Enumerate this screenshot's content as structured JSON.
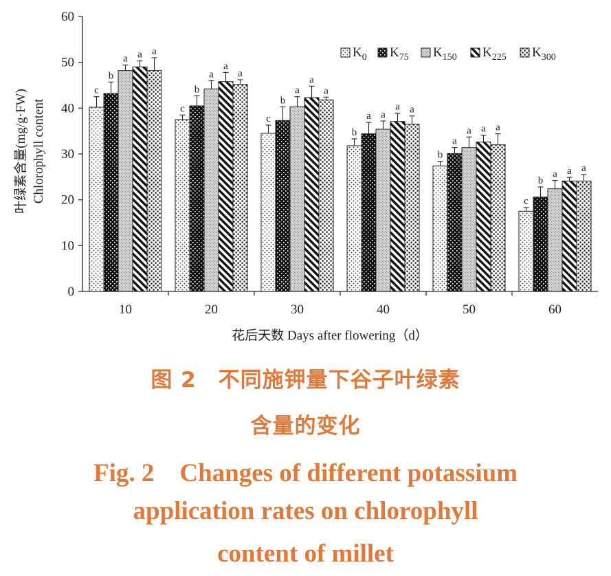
{
  "chart_data": {
    "type": "bar",
    "ylabel_zh": "叶绿素含量(mg/g·FW)",
    "ylabel_en": "Chlorophyll content",
    "xlabel": "花后天数 Days after flowering（d）",
    "ylim": [
      0,
      60
    ],
    "yticks": [
      "0",
      "10",
      "20",
      "30",
      "40",
      "50",
      "60"
    ],
    "categories": [
      "10",
      "20",
      "30",
      "40",
      "50",
      "60"
    ],
    "series": [
      {
        "name": "K0",
        "values": [
          40.2,
          37.5,
          34.5,
          31.8,
          27.4,
          17.5
        ],
        "errors": [
          2.3,
          1.0,
          1.8,
          1.5,
          1.0,
          0.8
        ],
        "letters": [
          "c",
          "c",
          "c",
          "b",
          "b",
          "c"
        ]
      },
      {
        "name": "K75",
        "values": [
          43.2,
          40.5,
          37.3,
          34.4,
          30.1,
          20.6
        ],
        "errors": [
          2.5,
          2.2,
          3.0,
          2.5,
          1.3,
          2.2
        ],
        "letters": [
          "b",
          "b",
          "b",
          "a",
          "a",
          "b"
        ]
      },
      {
        "name": "K150",
        "values": [
          48.2,
          44.2,
          40.3,
          35.4,
          31.4,
          22.4
        ],
        "errors": [
          1.2,
          1.8,
          2.2,
          1.8,
          2.3,
          1.8
        ],
        "letters": [
          "a",
          "a",
          "a",
          "a",
          "a",
          "a"
        ]
      },
      {
        "name": "K225",
        "values": [
          49.0,
          45.8,
          42.3,
          37.1,
          32.6,
          24.1
        ],
        "errors": [
          1.3,
          2.0,
          2.5,
          1.8,
          1.5,
          0.8
        ],
        "letters": [
          "a",
          "a",
          "a",
          "a",
          "a",
          "a"
        ]
      },
      {
        "name": "K300",
        "values": [
          48.2,
          45.2,
          41.8,
          36.5,
          32.0,
          24.1
        ],
        "errors": [
          2.8,
          1.0,
          0.6,
          1.8,
          2.4,
          1.4
        ],
        "letters": [
          "a",
          "a",
          "a",
          "a",
          "a",
          "a"
        ]
      }
    ],
    "legend": [
      {
        "main": "K",
        "sub": "0"
      },
      {
        "main": "K",
        "sub": "75"
      },
      {
        "main": "K",
        "sub": "150"
      },
      {
        "main": "K",
        "sub": "225"
      },
      {
        "main": "K",
        "sub": "300"
      }
    ],
    "legend_position": "top-right"
  },
  "caption": {
    "zh_line1": "图 2　不同施钾量下谷子叶绿素",
    "zh_line2": "含量的变化",
    "en_line1": "Fig. 2　Changes of different potassium",
    "en_line2": "application rates on chlorophyll",
    "en_line3": "content of millet"
  },
  "colors": {
    "caption": "#e07a3c",
    "axis": "#222222"
  }
}
